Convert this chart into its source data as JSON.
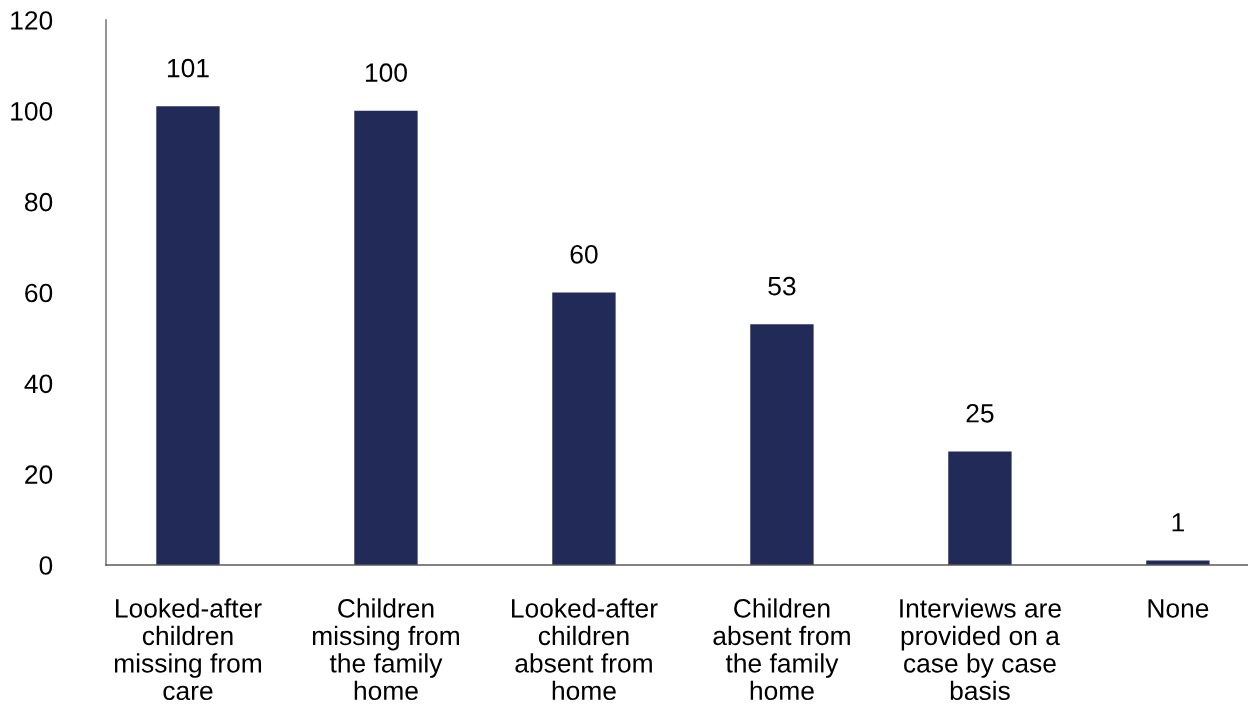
{
  "chart_data": {
    "type": "bar",
    "categories": [
      "Looked-after\nchildren\nmissing from\ncare",
      "Children\nmissing from\nthe family\nhome",
      "Looked-after\nchildren\nabsent from\nhome",
      "Children\nabsent from\nthe family\nhome",
      "Interviews are\nprovided on a\ncase by case\nbasis",
      "None"
    ],
    "values": [
      101,
      100,
      60,
      53,
      25,
      1
    ],
    "color": "#222b57",
    "ylim": [
      0,
      120
    ],
    "yticks": [
      0,
      20,
      40,
      60,
      80,
      100,
      120
    ],
    "data_labels": true
  }
}
